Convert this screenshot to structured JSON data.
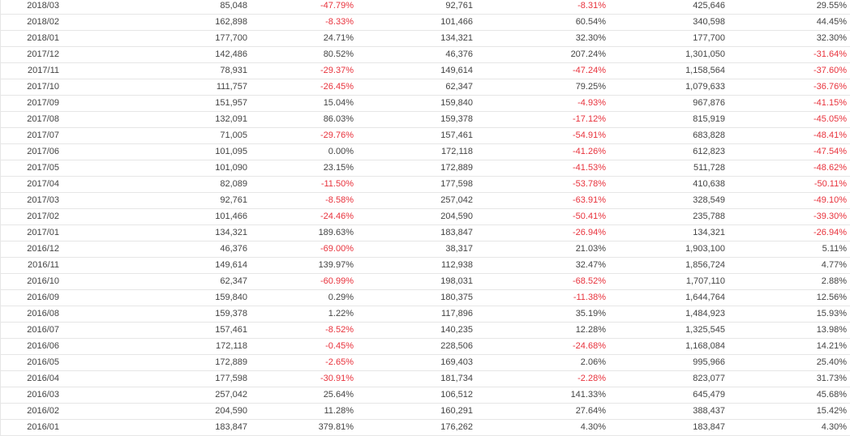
{
  "colors": {
    "negative": "#e8323c",
    "text": "#444444",
    "border": "#e6e6e6"
  },
  "table": {
    "rows": [
      [
        "2018/03",
        "85,048",
        "-47.79%",
        "92,761",
        "-8.31%",
        "425,646",
        "29.55%"
      ],
      [
        "2018/02",
        "162,898",
        "-8.33%",
        "101,466",
        "60.54%",
        "340,598",
        "44.45%"
      ],
      [
        "2018/01",
        "177,700",
        "24.71%",
        "134,321",
        "32.30%",
        "177,700",
        "32.30%"
      ],
      [
        "2017/12",
        "142,486",
        "80.52%",
        "46,376",
        "207.24%",
        "1,301,050",
        "-31.64%"
      ],
      [
        "2017/11",
        "78,931",
        "-29.37%",
        "149,614",
        "-47.24%",
        "1,158,564",
        "-37.60%"
      ],
      [
        "2017/10",
        "111,757",
        "-26.45%",
        "62,347",
        "79.25%",
        "1,079,633",
        "-36.76%"
      ],
      [
        "2017/09",
        "151,957",
        "15.04%",
        "159,840",
        "-4.93%",
        "967,876",
        "-41.15%"
      ],
      [
        "2017/08",
        "132,091",
        "86.03%",
        "159,378",
        "-17.12%",
        "815,919",
        "-45.05%"
      ],
      [
        "2017/07",
        "71,005",
        "-29.76%",
        "157,461",
        "-54.91%",
        "683,828",
        "-48.41%"
      ],
      [
        "2017/06",
        "101,095",
        "0.00%",
        "172,118",
        "-41.26%",
        "612,823",
        "-47.54%"
      ],
      [
        "2017/05",
        "101,090",
        "23.15%",
        "172,889",
        "-41.53%",
        "511,728",
        "-48.62%"
      ],
      [
        "2017/04",
        "82,089",
        "-11.50%",
        "177,598",
        "-53.78%",
        "410,638",
        "-50.11%"
      ],
      [
        "2017/03",
        "92,761",
        "-8.58%",
        "257,042",
        "-63.91%",
        "328,549",
        "-49.10%"
      ],
      [
        "2017/02",
        "101,466",
        "-24.46%",
        "204,590",
        "-50.41%",
        "235,788",
        "-39.30%"
      ],
      [
        "2017/01",
        "134,321",
        "189.63%",
        "183,847",
        "-26.94%",
        "134,321",
        "-26.94%"
      ],
      [
        "2016/12",
        "46,376",
        "-69.00%",
        "38,317",
        "21.03%",
        "1,903,100",
        "5.11%"
      ],
      [
        "2016/11",
        "149,614",
        "139.97%",
        "112,938",
        "32.47%",
        "1,856,724",
        "4.77%"
      ],
      [
        "2016/10",
        "62,347",
        "-60.99%",
        "198,031",
        "-68.52%",
        "1,707,110",
        "2.88%"
      ],
      [
        "2016/09",
        "159,840",
        "0.29%",
        "180,375",
        "-11.38%",
        "1,644,764",
        "12.56%"
      ],
      [
        "2016/08",
        "159,378",
        "1.22%",
        "117,896",
        "35.19%",
        "1,484,923",
        "15.93%"
      ],
      [
        "2016/07",
        "157,461",
        "-8.52%",
        "140,235",
        "12.28%",
        "1,325,545",
        "13.98%"
      ],
      [
        "2016/06",
        "172,118",
        "-0.45%",
        "228,506",
        "-24.68%",
        "1,168,084",
        "14.21%"
      ],
      [
        "2016/05",
        "172,889",
        "-2.65%",
        "169,403",
        "2.06%",
        "995,966",
        "25.40%"
      ],
      [
        "2016/04",
        "177,598",
        "-30.91%",
        "181,734",
        "-2.28%",
        "823,077",
        "31.73%"
      ],
      [
        "2016/03",
        "257,042",
        "25.64%",
        "106,512",
        "141.33%",
        "645,479",
        "45.68%"
      ],
      [
        "2016/02",
        "204,590",
        "11.28%",
        "160,291",
        "27.64%",
        "388,437",
        "15.42%"
      ],
      [
        "2016/01",
        "183,847",
        "379.81%",
        "176,262",
        "4.30%",
        "183,847",
        "4.30%"
      ]
    ]
  }
}
